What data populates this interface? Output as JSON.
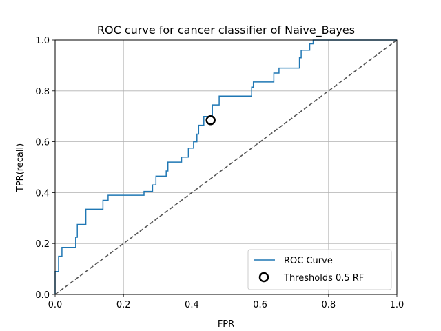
{
  "chart_data": {
    "type": "line",
    "title": "ROC curve for cancer classifier of Naive_Bayes",
    "xlabel": "FPR",
    "ylabel": "TPR(recall)",
    "xlim": [
      0.0,
      1.0
    ],
    "ylim": [
      0.0,
      1.0
    ],
    "xticks": [
      "0.0",
      "0.2",
      "0.4",
      "0.6",
      "0.8",
      "1.0"
    ],
    "yticks": [
      "0.0",
      "0.2",
      "0.4",
      "0.6",
      "0.8",
      "1.0"
    ],
    "grid": true,
    "legend_position": "lower-right",
    "series": [
      {
        "name": "ROC Curve",
        "color": "#1f77b4",
        "style": "step",
        "x": [
          0.0,
          0.0,
          0.01,
          0.01,
          0.02,
          0.02,
          0.06,
          0.06,
          0.065,
          0.065,
          0.09,
          0.09,
          0.14,
          0.14,
          0.155,
          0.155,
          0.26,
          0.26,
          0.285,
          0.285,
          0.295,
          0.295,
          0.325,
          0.325,
          0.33,
          0.33,
          0.37,
          0.37,
          0.39,
          0.39,
          0.405,
          0.405,
          0.415,
          0.415,
          0.42,
          0.42,
          0.435,
          0.435,
          0.46,
          0.46,
          0.48,
          0.48,
          0.575,
          0.575,
          0.58,
          0.58,
          0.64,
          0.64,
          0.655,
          0.655,
          0.715,
          0.715,
          0.72,
          0.72,
          0.725,
          0.725,
          0.745,
          0.745,
          0.755,
          0.755,
          0.76,
          0.76,
          1.0
        ],
        "y": [
          0.0,
          0.09,
          0.09,
          0.15,
          0.15,
          0.185,
          0.185,
          0.225,
          0.225,
          0.275,
          0.275,
          0.335,
          0.335,
          0.37,
          0.37,
          0.39,
          0.39,
          0.405,
          0.405,
          0.43,
          0.43,
          0.465,
          0.465,
          0.485,
          0.485,
          0.52,
          0.52,
          0.54,
          0.54,
          0.575,
          0.575,
          0.6,
          0.6,
          0.63,
          0.63,
          0.665,
          0.665,
          0.7,
          0.7,
          0.745,
          0.745,
          0.78,
          0.78,
          0.815,
          0.815,
          0.835,
          0.835,
          0.87,
          0.87,
          0.89,
          0.89,
          0.93,
          0.93,
          0.96,
          0.96,
          0.96,
          0.96,
          0.985,
          0.985,
          1.0,
          1.0,
          1.0,
          1.0
        ]
      },
      {
        "name": "",
        "color": "#555555",
        "style": "dashed",
        "x": [
          0.0,
          1.0
        ],
        "y": [
          0.0,
          1.0
        ]
      }
    ],
    "markers": [
      {
        "name": "Thresholds 0.5 RF",
        "shape": "open-circle",
        "color": "#000000",
        "x": 0.455,
        "y": 0.685
      }
    ]
  }
}
